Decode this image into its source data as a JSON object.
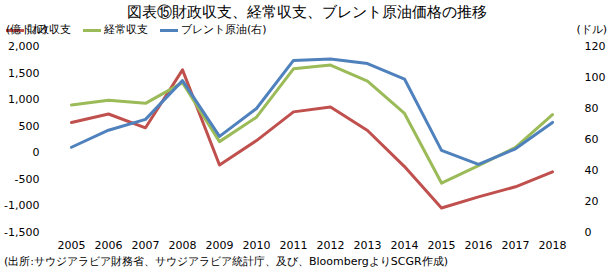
{
  "chart_data": {
    "type": "line",
    "title": "図表⑮財政収支、経常収支、ブレント原油価格の推移",
    "y_label": "(億ドル)",
    "y2_label": "(ドル)",
    "caption": "(出所:サウジアラビア財務省、サウジアラビア統計庁、及び、BloombergよりSCGR作成)",
    "categories": [
      "2005",
      "2006",
      "2007",
      "2008",
      "2009",
      "2010",
      "2011",
      "2012",
      "2013",
      "2014",
      "2015",
      "2016",
      "2017",
      "2018"
    ],
    "series": [
      {
        "name": "財政収支",
        "color": "#c0504d",
        "values": [
          570,
          730,
          470,
          1560,
          -230,
          230,
          770,
          860,
          420,
          -260,
          -1040,
          -830,
          -640,
          -360
        ]
      },
      {
        "name": "経常収支",
        "color": "#9bbb59",
        "values": [
          900,
          990,
          930,
          1320,
          210,
          670,
          1580,
          1650,
          1350,
          740,
          -570,
          -240,
          100,
          720
        ]
      },
      {
        "name": "ブレント原油(右)",
        "color": "#4f81bd",
        "axis": "y2",
        "values": [
          55,
          66,
          73,
          98,
          62,
          80,
          111,
          112,
          109,
          99,
          53,
          44,
          54,
          71
        ]
      }
    ],
    "ylim": [
      -1500,
      2000
    ],
    "yticks": [
      {
        "value": -1500,
        "label": "-1,500"
      },
      {
        "value": -1000,
        "label": "-1,000"
      },
      -500,
      0,
      500,
      {
        "value": 1000,
        "label": "1,000"
      },
      {
        "value": 1500,
        "label": "1,500"
      },
      {
        "value": 2000,
        "label": "2,000"
      }
    ],
    "y2lim": [
      0,
      120
    ],
    "y2ticks": [
      0,
      20,
      40,
      60,
      80,
      100,
      120
    ],
    "grid": false,
    "legend": "top"
  }
}
